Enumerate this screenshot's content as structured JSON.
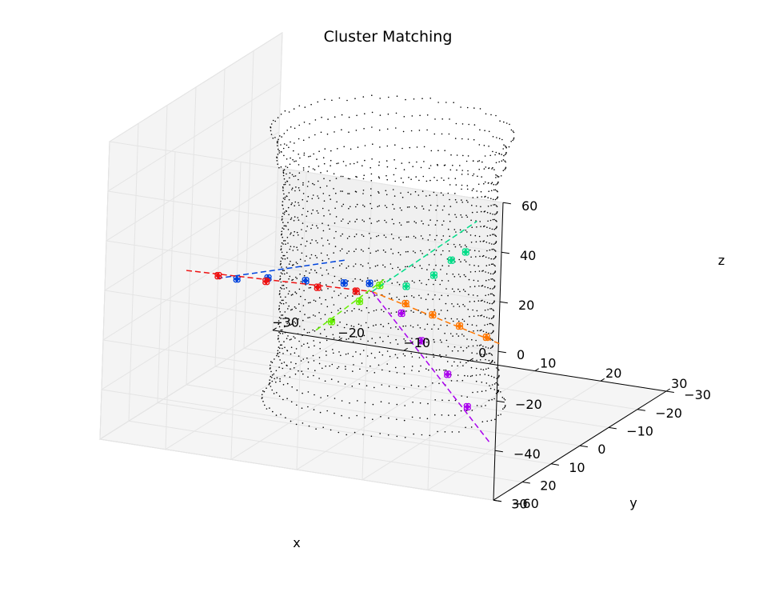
{
  "chart_data": {
    "type": "scatter",
    "projection": "3d",
    "title": "Cluster Matching",
    "xlabel": "x",
    "ylabel": "y",
    "zlabel": "z",
    "xlim": [
      -30,
      30
    ],
    "ylim": [
      -30,
      30
    ],
    "zlim": [
      -60,
      60
    ],
    "xticks": [
      -30,
      -20,
      -10,
      0,
      10,
      20,
      30
    ],
    "yticks": [
      -30,
      -20,
      -10,
      0,
      10,
      20,
      30
    ],
    "zticks": [
      -60,
      -40,
      -20,
      0,
      20,
      40,
      60
    ],
    "grid": true,
    "background_points": {
      "description": "cylindrical shell of small black points",
      "color": "#000000",
      "radius": 15,
      "z_levels": [
        -54,
        -48,
        -42,
        -36,
        -30,
        -24,
        -18,
        -12,
        -6,
        0,
        6,
        12,
        18,
        24,
        30,
        36,
        42,
        48,
        54
      ],
      "points_per_level": 90,
      "radius_by_level": [
        17,
        16,
        16,
        15,
        15,
        15,
        15,
        15,
        15,
        15,
        15,
        15,
        15,
        15,
        15,
        15,
        16,
        16,
        17
      ]
    },
    "series": [
      {
        "color": "#0044dd",
        "line": {
          "from": [
            -28,
            -5,
            -20
          ],
          "to": [
            2,
            20,
            18
          ]
        },
        "clusters": [
          [
            -25,
            -5,
            -19
          ],
          [
            -19,
            -2,
            -14
          ],
          [
            -12,
            1,
            -10
          ],
          [
            -4,
            6,
            -4
          ],
          [
            2,
            11,
            2
          ]
        ]
      },
      {
        "color": "#ee1111",
        "line": {
          "from": [
            -22,
            20,
            4
          ],
          "to": [
            2,
            10,
            -2
          ]
        },
        "clusters": [
          [
            -18,
            18,
            2
          ],
          [
            -12,
            15,
            0
          ],
          [
            -5,
            13,
            -1
          ],
          [
            0,
            11,
            -2
          ]
        ]
      },
      {
        "color": "#66ee00",
        "line": {
          "from": [
            -20,
            -22,
            -50
          ],
          "to": [
            2,
            5,
            0
          ]
        },
        "clusters": [
          [
            -16,
            -18,
            -42
          ],
          [
            -8,
            -9,
            -24
          ],
          [
            -2,
            -2,
            -10
          ]
        ]
      },
      {
        "color": "#ff7700",
        "line": {
          "from": [
            2,
            10,
            -2
          ],
          "to": [
            26,
            20,
            -6
          ]
        },
        "clusters": [
          [
            8,
            12,
            -3
          ],
          [
            13,
            14,
            -4
          ],
          [
            18,
            16,
            -5
          ],
          [
            23,
            18,
            -6
          ]
        ]
      },
      {
        "color": "#aa00ee",
        "line": {
          "from": [
            2,
            10,
            -2
          ],
          "to": [
            24,
            18,
            -48
          ]
        },
        "clusters": [
          [
            7,
            11,
            -8
          ],
          [
            11,
            13,
            -16
          ],
          [
            16,
            15,
            -26
          ],
          [
            20,
            17,
            -36
          ]
        ]
      },
      {
        "color": "#00dd88",
        "line": {
          "from": [
            2,
            10,
            -2
          ],
          "to": [
            21,
            18,
            40
          ]
        },
        "clusters": [
          [
            8,
            12,
            4
          ],
          [
            13,
            14,
            12
          ],
          [
            16,
            15,
            20
          ],
          [
            19,
            17,
            26
          ]
        ]
      }
    ]
  }
}
